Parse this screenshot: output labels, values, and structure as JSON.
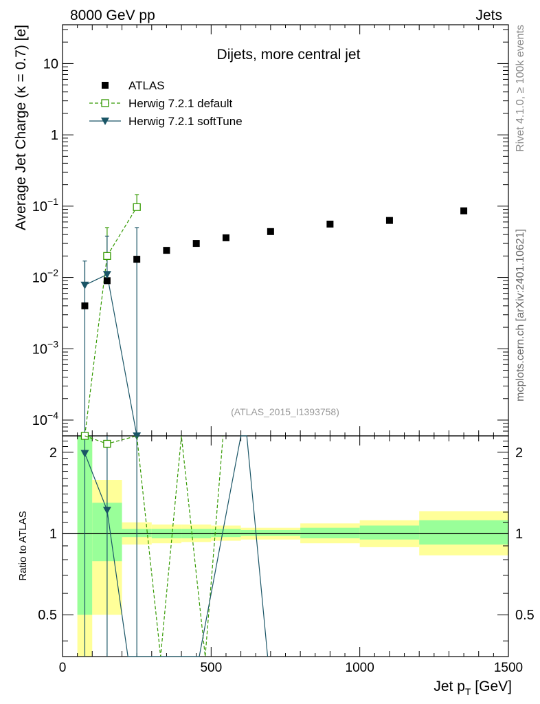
{
  "chart_data": {
    "type": "scatter",
    "header_left": "8000 GeV pp",
    "header_right": "Jets",
    "title": "Dijets, more central jet",
    "ylabel": "Average Jet Charge (κ = 0.7) [e]",
    "ratio_ylabel": "Ratio to ATLAS",
    "xlabel": "Jet p",
    "xlabel_sub": "T",
    "xlabel_unit": " [GeV]",
    "watermark": "(ATLAS_2015_I1393758)",
    "side_text_top": "Rivet 4.1.0, ≥ 100k events",
    "side_text_bottom": "mcplots.cern.ch [arXiv:2401.10621]",
    "xlim": [
      0,
      1500
    ],
    "ylim": [
      6e-05,
      35
    ],
    "ratio_ylim": [
      0.35,
      2.3
    ],
    "x_ticks": [
      0,
      500,
      1000,
      1500
    ],
    "x_tick_labels": [
      "0",
      "500",
      "1000",
      "1500"
    ],
    "y_tick_values": [
      0.0001,
      0.001,
      0.01,
      0.1,
      1,
      10
    ],
    "y_tick_labels": [
      {
        "base": "10",
        "exp": "−4"
      },
      {
        "base": "10",
        "exp": "−3"
      },
      {
        "base": "10",
        "exp": "−2"
      },
      {
        "base": "10",
        "exp": "−1"
      },
      {
        "base": "1",
        "exp": ""
      },
      {
        "base": "10",
        "exp": ""
      }
    ],
    "ratio_tick_values": [
      0.5,
      1,
      2
    ],
    "ratio_tick_labels": [
      "0.5",
      "1",
      "2"
    ],
    "legend": [
      "ATLAS",
      "Herwig 7.2.1 default",
      "Herwig 7.2.1 softTune"
    ],
    "colors": {
      "data": "#000000",
      "default": "#339900",
      "softtune": "#1a5566",
      "band_inner": "#99ff99",
      "band_outer": "#ffff99"
    },
    "data": {
      "name": "ATLAS",
      "bins": [
        [
          50,
          100
        ],
        [
          100,
          200
        ],
        [
          200,
          300
        ],
        [
          300,
          400
        ],
        [
          400,
          500
        ],
        [
          500,
          600
        ],
        [
          600,
          800
        ],
        [
          800,
          1000
        ],
        [
          1000,
          1200
        ],
        [
          1200,
          1500
        ]
      ],
      "x": [
        75,
        150,
        250,
        350,
        450,
        550,
        700,
        900,
        1100,
        1350
      ],
      "y": [
        0.004,
        0.009,
        0.018,
        0.024,
        0.03,
        0.036,
        0.044,
        0.056,
        0.063,
        0.086
      ],
      "band_inner": [
        [
          0.5,
          2.3
        ],
        [
          0.79,
          1.3
        ],
        [
          0.97,
          1.04
        ],
        [
          0.96,
          1.04
        ],
        [
          0.96,
          1.04
        ],
        [
          0.97,
          1.04
        ],
        [
          0.98,
          1.03
        ],
        [
          0.96,
          1.05
        ],
        [
          0.95,
          1.07
        ],
        [
          0.91,
          1.12
        ]
      ],
      "band_outer": [
        [
          0.35,
          2.3
        ],
        [
          0.5,
          1.58
        ],
        [
          0.91,
          1.1
        ],
        [
          0.92,
          1.08
        ],
        [
          0.93,
          1.08
        ],
        [
          0.94,
          1.07
        ],
        [
          0.95,
          1.05
        ],
        [
          0.92,
          1.09
        ],
        [
          0.89,
          1.12
        ],
        [
          0.83,
          1.21
        ]
      ]
    },
    "series": [
      {
        "name": "Herwig 7.2.1 default",
        "x": [
          75,
          150,
          250
        ],
        "y": [
          6e-05,
          0.02,
          0.097
        ],
        "err_low": [
          6e-05,
          6e-05,
          0.05
        ],
        "err_high": [
          6e-05,
          0.05,
          0.145
        ],
        "ratio_x": [
          75,
          150,
          250,
          330,
          400,
          480,
          540
        ],
        "ratio_y": [
          2.3,
          2.15,
          2.3,
          0.35,
          2.3,
          0.35,
          2.3
        ]
      },
      {
        "name": "Herwig 7.2.1 softTune",
        "x": [
          75,
          150,
          250
        ],
        "y": [
          0.0078,
          0.011,
          6e-05
        ],
        "err_low": [
          6e-05,
          6e-05,
          6e-05
        ],
        "err_high": [
          0.017,
          0.038,
          0.05
        ],
        "ratio_x": [
          75,
          150,
          220,
          230,
          440,
          460,
          600,
          620,
          690
        ],
        "ratio_y": [
          1.98,
          1.22,
          0.35,
          0.35,
          0.35,
          0.35,
          2.3,
          2.3,
          0.35
        ]
      }
    ]
  }
}
